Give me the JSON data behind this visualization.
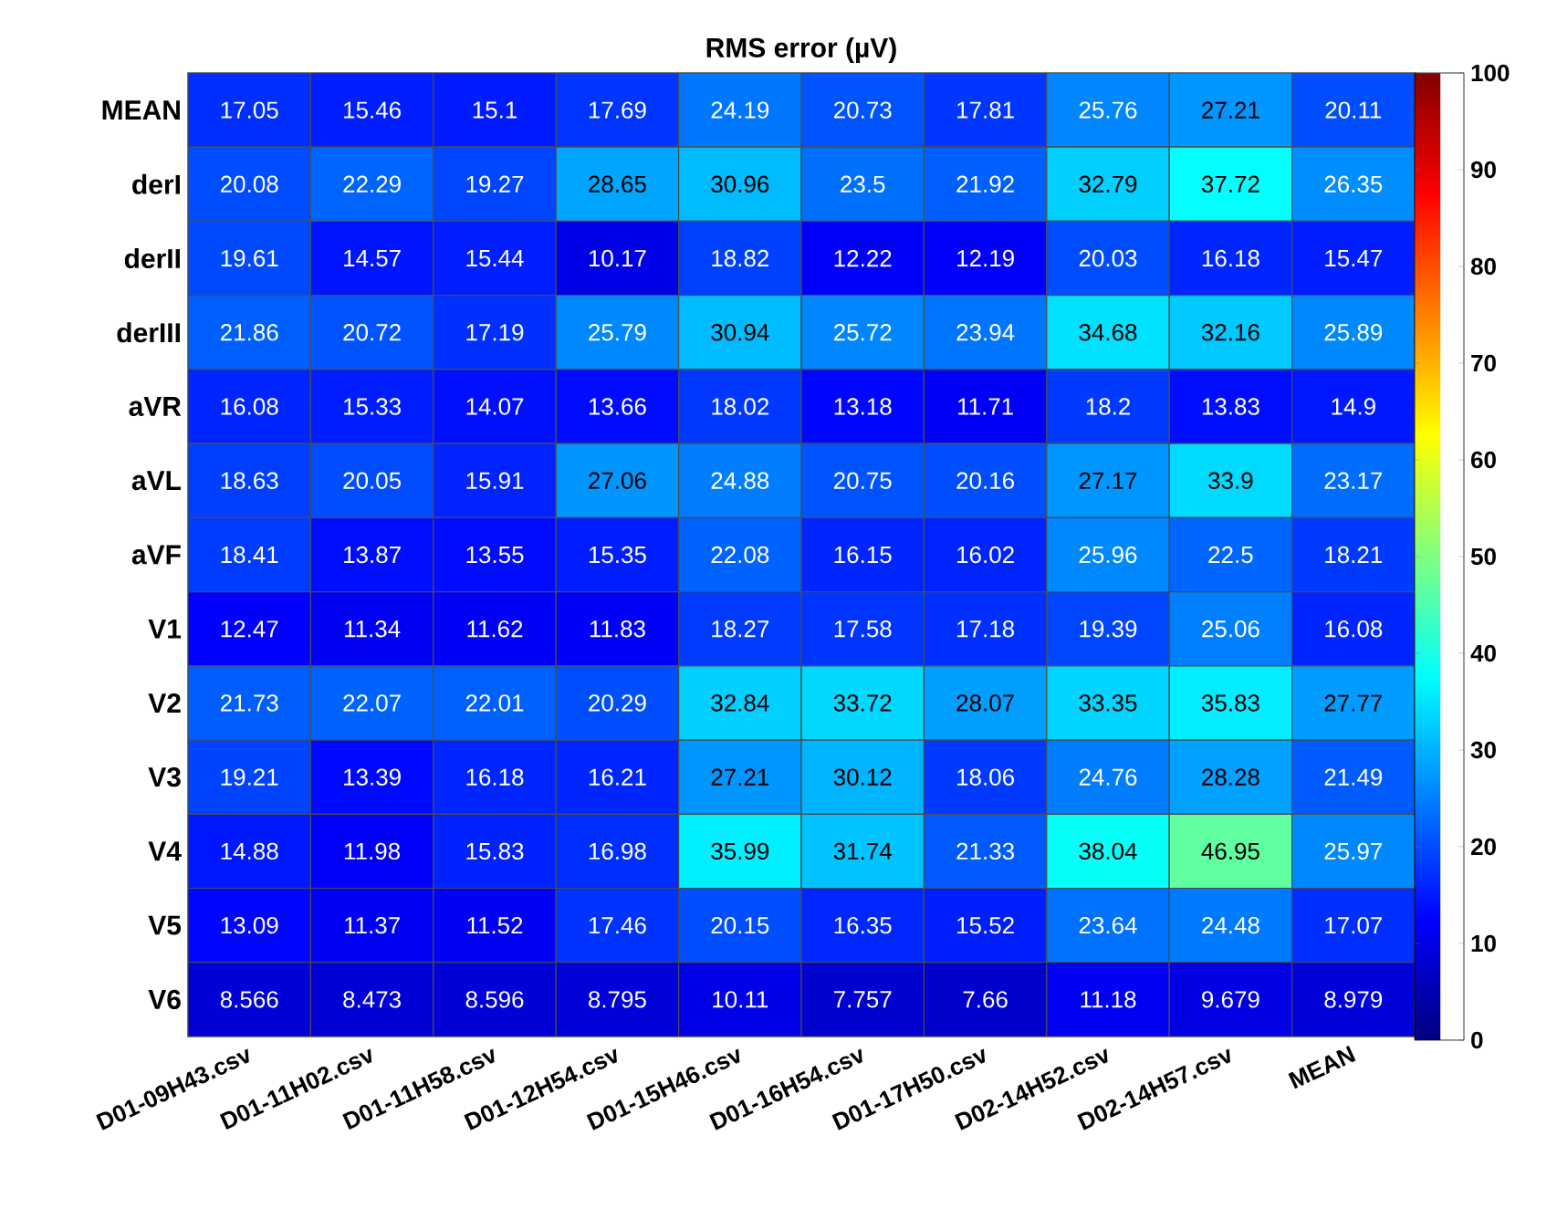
{
  "chart_data": {
    "type": "heatmap",
    "title": "RMS error (µV)",
    "categories": [
      "D01-09H43.csv",
      "D01-11H02.csv",
      "D01-11H58.csv",
      "D01-12H54.csv",
      "D01-15H46.csv",
      "D01-16H54.csv",
      "D01-17H50.csv",
      "D02-14H52.csv",
      "D02-14H57.csv",
      "MEAN"
    ],
    "y_categories": [
      "MEAN",
      "derI",
      "derII",
      "derIII",
      "aVR",
      "aVL",
      "aVF",
      "V1",
      "V2",
      "V3",
      "V4",
      "V5",
      "V6"
    ],
    "cells": [
      [
        17.05,
        15.46,
        15.1,
        17.69,
        24.19,
        20.73,
        17.81,
        25.76,
        27.21,
        20.11
      ],
      [
        20.08,
        22.29,
        19.27,
        28.65,
        30.96,
        23.5,
        21.92,
        32.79,
        37.72,
        26.35
      ],
      [
        19.61,
        14.57,
        15.44,
        10.17,
        18.82,
        12.22,
        12.19,
        20.03,
        16.18,
        15.47
      ],
      [
        21.86,
        20.72,
        17.19,
        25.79,
        30.94,
        25.72,
        23.94,
        34.68,
        32.16,
        25.89
      ],
      [
        16.08,
        15.33,
        14.07,
        13.66,
        18.02,
        13.18,
        11.71,
        18.2,
        13.83,
        14.9
      ],
      [
        18.63,
        20.05,
        15.91,
        27.06,
        24.88,
        20.75,
        20.16,
        27.17,
        33.9,
        23.17
      ],
      [
        18.41,
        13.87,
        13.55,
        15.35,
        22.08,
        16.15,
        16.02,
        25.96,
        22.5,
        18.21
      ],
      [
        12.47,
        11.34,
        11.62,
        11.83,
        18.27,
        17.58,
        17.18,
        19.39,
        25.06,
        16.08
      ],
      [
        21.73,
        22.07,
        22.01,
        20.29,
        32.84,
        33.72,
        28.07,
        33.35,
        35.83,
        27.77
      ],
      [
        19.21,
        13.39,
        16.18,
        16.21,
        27.21,
        30.12,
        18.06,
        24.76,
        28.28,
        21.49
      ],
      [
        14.88,
        11.98,
        15.83,
        16.98,
        35.99,
        31.74,
        21.33,
        38.04,
        46.95,
        25.97
      ],
      [
        13.09,
        11.37,
        11.52,
        17.46,
        20.15,
        16.35,
        15.52,
        23.64,
        24.48,
        17.07
      ],
      [
        8.566,
        8.473,
        8.596,
        8.795,
        10.11,
        7.757,
        7.66,
        11.18,
        9.679,
        8.979
      ]
    ],
    "clim": [
      0,
      100
    ],
    "cticks": [
      0,
      10,
      20,
      30,
      40,
      50,
      60,
      70,
      80,
      90,
      100
    ],
    "data_labels": true
  }
}
